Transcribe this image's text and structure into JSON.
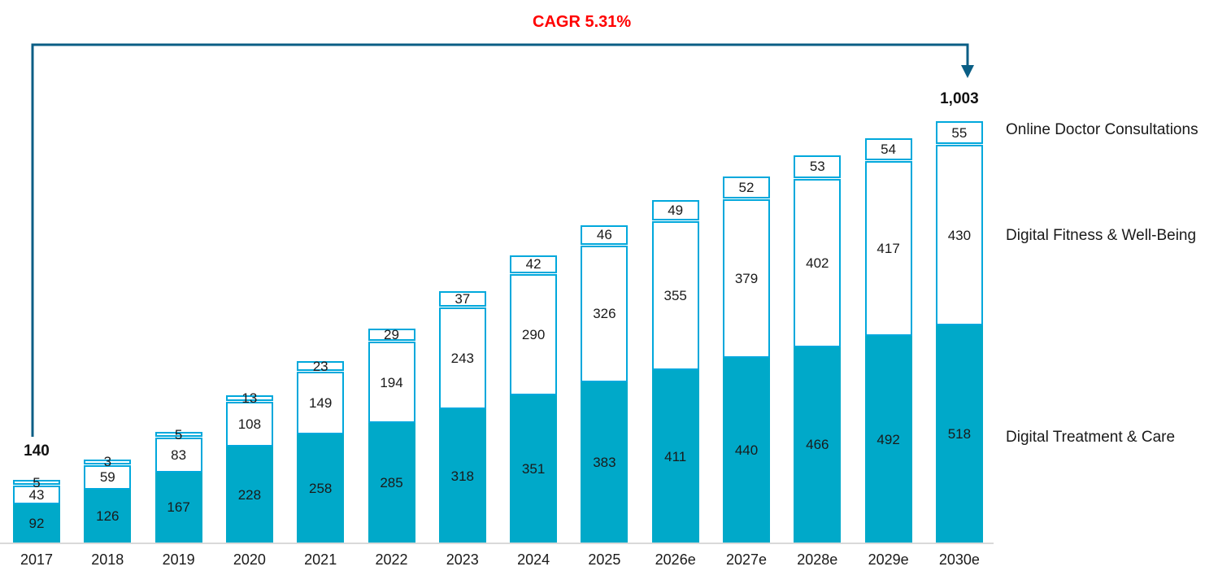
{
  "annotation": {
    "cagr_text": "CAGR 5.31%",
    "cagr_color": "#FF0000"
  },
  "colors": {
    "bar_fill": "#00A9C9",
    "segment_border": "#00A8DC",
    "arrow": "#0A5E85",
    "baseline": "#D9D9D9",
    "label": "#1A1A1A"
  },
  "legend": {
    "top": "Online Doctor Consultations",
    "middle": "Digital Fitness & Well-Being",
    "bottom": "Digital Treatment & Care"
  },
  "chart_data": {
    "type": "bar",
    "stacked": true,
    "title": "",
    "categories": [
      "2017",
      "2018",
      "2019",
      "2020",
      "2021",
      "2022",
      "2023",
      "2024",
      "2025",
      "2026e",
      "2027e",
      "2028e",
      "2029e",
      "2030e"
    ],
    "series": [
      {
        "name": "Digital Treatment & Care",
        "values": [
          92,
          126,
          167,
          228,
          258,
          285,
          318,
          351,
          383,
          411,
          440,
          466,
          492,
          518
        ]
      },
      {
        "name": "Digital Fitness & Well-Being",
        "values": [
          43,
          59,
          83,
          108,
          149,
          194,
          243,
          290,
          326,
          355,
          379,
          402,
          417,
          430
        ]
      },
      {
        "name": "Online Doctor Consultations",
        "values": [
          5,
          3,
          5,
          13,
          23,
          29,
          37,
          42,
          46,
          49,
          52,
          53,
          54,
          55
        ]
      }
    ],
    "totals": [
      {
        "category": "2017",
        "index": 0,
        "label": "140"
      },
      {
        "category": "2030e",
        "index": 13,
        "label": "1,003"
      }
    ],
    "annotations": [
      "CAGR 5.31%"
    ],
    "ylim": [
      0,
      1003
    ],
    "grid": false,
    "legend_position": "right"
  }
}
